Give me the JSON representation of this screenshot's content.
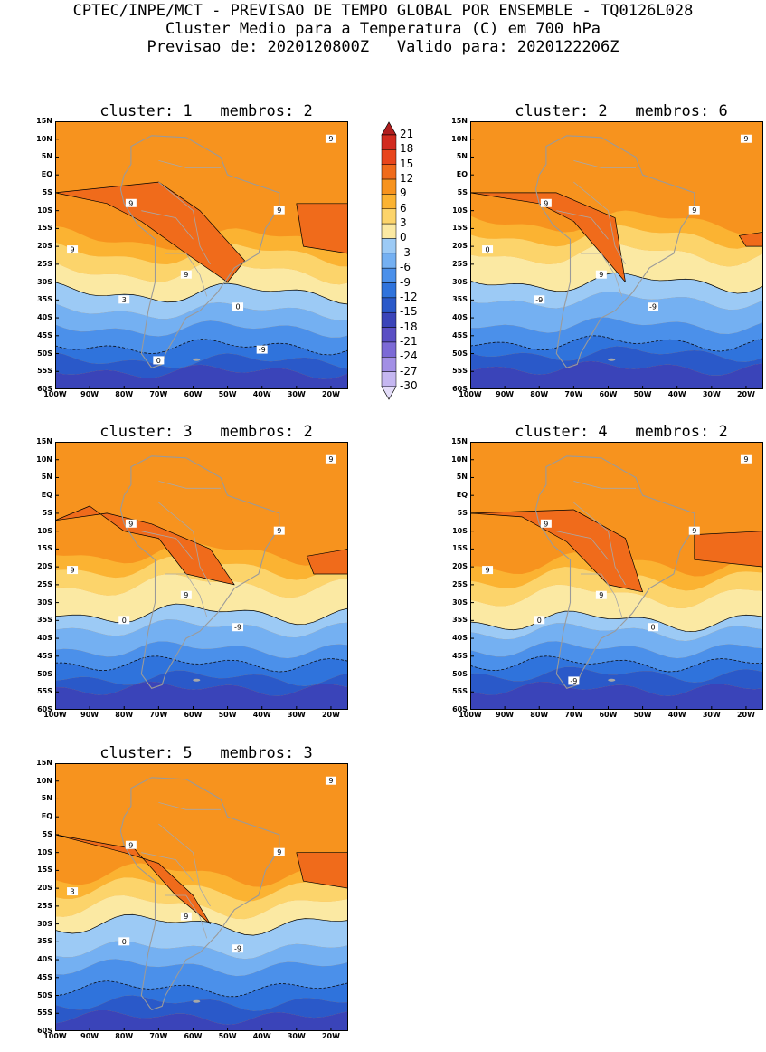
{
  "header": {
    "line1": "CPTEC/INPE/MCT - PREVISAO DE TEMPO GLOBAL POR ENSEMBLE - TQ0126L028",
    "line2": "Cluster Medio para a Temperatura (C) em 700 hPa",
    "line3": "Previsao de: 2020120800Z   Valido para: 2020122206Z"
  },
  "y_ticks": [
    "15N",
    "10N",
    "5N",
    "EQ",
    "5S",
    "10S",
    "15S",
    "20S",
    "25S",
    "30S",
    "35S",
    "40S",
    "45S",
    "50S",
    "55S",
    "60S"
  ],
  "x_ticks": [
    "100W",
    "90W",
    "80W",
    "70W",
    "60W",
    "50W",
    "40W",
    "30W",
    "20W"
  ],
  "colorbar": {
    "levels": [
      "21",
      "18",
      "15",
      "12",
      "9",
      "6",
      "3",
      "0",
      "-3",
      "-6",
      "-9",
      "-12",
      "-15",
      "-18",
      "-21",
      "-24",
      "-27",
      "-30"
    ],
    "colors": [
      "#b01e1e",
      "#d22b1f",
      "#e8451c",
      "#f06b1b",
      "#f7931e",
      "#fbb332",
      "#fcd46b",
      "#fbe9a3",
      "#9ccaf5",
      "#74b0f2",
      "#4b90ea",
      "#2f73dc",
      "#2a59c9",
      "#3a44b9",
      "#5a4fc4",
      "#7c6ad6",
      "#a28fe5",
      "#c5b7f1",
      "#e4ddf9"
    ]
  },
  "panels": [
    {
      "title": "cluster: 1   membros: 2",
      "labels": [
        "9",
        "9",
        "9",
        "9",
        "9",
        "3",
        "0",
        "0",
        "-9"
      ]
    },
    {
      "title": "cluster: 2   membros: 6",
      "labels": [
        "9",
        "9",
        "9",
        "9",
        "0",
        "-9",
        "-9"
      ]
    },
    {
      "title": "cluster: 3   membros: 2",
      "labels": [
        "9",
        "9",
        "9",
        "9",
        "9",
        "0",
        "-9"
      ]
    },
    {
      "title": "cluster: 4   membros: 2",
      "labels": [
        "9",
        "9",
        "9",
        "9",
        "9",
        "0",
        "0",
        "-9"
      ]
    },
    {
      "title": "cluster: 5   membros: 3",
      "labels": [
        "9",
        "9",
        "9",
        "9",
        "3",
        "0",
        "-9"
      ]
    }
  ]
}
